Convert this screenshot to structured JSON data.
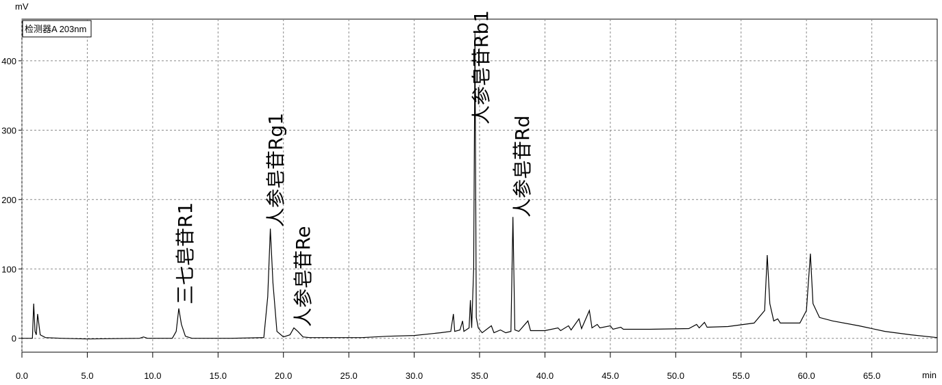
{
  "chart_data": {
    "type": "line",
    "x_label": "min",
    "y_label": "mV",
    "xlim": [
      0,
      70
    ],
    "ylim": [
      -20,
      460
    ],
    "xticks": [
      {
        "value": 0,
        "label": "0.0"
      },
      {
        "value": 5,
        "label": "5.0"
      },
      {
        "value": 10,
        "label": "10.0"
      },
      {
        "value": 15,
        "label": "15.0"
      },
      {
        "value": 20,
        "label": "20.0"
      },
      {
        "value": 25,
        "label": "25.0"
      },
      {
        "value": 30,
        "label": "30.0"
      },
      {
        "value": 35,
        "label": "35.0"
      },
      {
        "value": 40,
        "label": "40.0"
      },
      {
        "value": 45,
        "label": "45.0"
      },
      {
        "value": 50,
        "label": "50.0"
      },
      {
        "value": 55,
        "label": "55.0"
      },
      {
        "value": 60,
        "label": "60.0"
      },
      {
        "value": 65,
        "label": "65.0"
      }
    ],
    "yticks": [
      0,
      100,
      200,
      300,
      400
    ],
    "grid": true,
    "legend": "upper left",
    "annotations": [
      "三七皂苷R1",
      "人参皂苷Rg1",
      "人参皂苷Re",
      "人参皂苷Rb1",
      "人参皂苷Rd"
    ],
    "x": [
      0.0,
      0.8,
      0.9,
      1.0,
      1.1,
      1.2,
      1.4,
      1.8,
      3,
      5,
      9,
      9.3,
      9.6,
      11.5,
      11.8,
      12.0,
      12.2,
      12.5,
      13,
      16,
      18.5,
      18.8,
      19.0,
      19.2,
      19.5,
      20.0,
      20.5,
      20.8,
      21.1,
      21.5,
      22,
      26,
      28,
      30,
      32,
      32.8,
      33.0,
      33.1,
      33.5,
      33.7,
      33.8,
      34.2,
      34.3,
      34.4,
      34.55,
      34.65,
      34.75,
      34.9,
      35.2,
      35.9,
      36.1,
      36.6,
      37.0,
      37.4,
      37.55,
      37.7,
      38.0,
      38.7,
      38.9,
      40,
      41,
      41.2,
      41.8,
      42.0,
      42.6,
      42.8,
      43.4,
      43.6,
      44,
      44.2,
      45,
      45.2,
      45.8,
      46,
      48,
      51,
      51.6,
      51.8,
      52.2,
      52.4,
      54,
      56,
      56.8,
      57.0,
      57.2,
      57.5,
      57.8,
      58,
      59.5,
      60.0,
      60.3,
      60.5,
      61,
      62,
      64,
      66,
      68,
      70
    ],
    "series": [
      {
        "name": "检测器A 203nm",
        "color": "#000000",
        "values": [
          0,
          0,
          50,
          10,
          5,
          35,
          5,
          1,
          0,
          -1,
          0,
          2,
          0,
          0,
          10,
          43,
          20,
          3,
          0,
          0,
          1,
          60,
          158,
          80,
          10,
          2,
          5,
          15,
          10,
          2,
          1,
          1,
          3,
          4,
          8,
          10,
          35,
          10,
          12,
          25,
          10,
          15,
          55,
          15,
          100,
          440,
          30,
          15,
          8,
          18,
          8,
          12,
          8,
          10,
          175,
          12,
          10,
          25,
          11,
          11,
          15,
          11,
          18,
          12,
          28,
          14,
          40,
          15,
          20,
          15,
          18,
          13,
          16,
          13,
          13,
          14,
          20,
          15,
          23,
          16,
          17,
          22,
          40,
          120,
          50,
          25,
          28,
          22,
          22,
          40,
          122,
          50,
          30,
          25,
          18,
          10,
          5,
          1
        ]
      }
    ]
  }
}
